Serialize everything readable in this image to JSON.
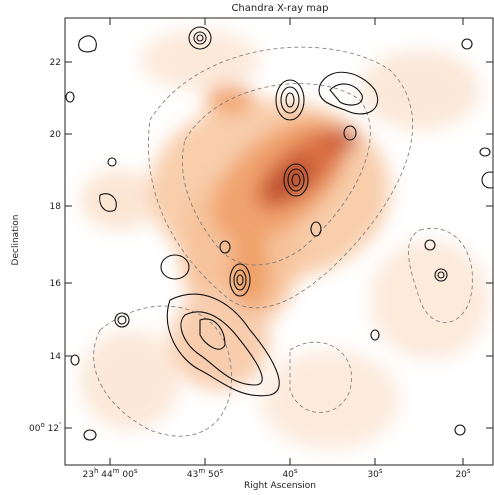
{
  "figure": {
    "title": "Chandra X-ray map",
    "x_label": "Right Ascension",
    "y_label": "Declination",
    "x_ticks": [
      [
        "23",
        "h",
        " 44",
        "m",
        " 00",
        "s"
      ],
      [
        "43",
        "m",
        " 50",
        "s"
      ],
      [
        "40",
        "s"
      ],
      [
        "30",
        "s"
      ],
      [
        "20",
        "s"
      ]
    ],
    "y_ticks": [
      [
        "22"
      ],
      [
        "20"
      ],
      [
        "18"
      ],
      [
        "16"
      ],
      [
        "14"
      ],
      [
        "00",
        "o",
        " 12",
        "'"
      ]
    ]
  }
}
